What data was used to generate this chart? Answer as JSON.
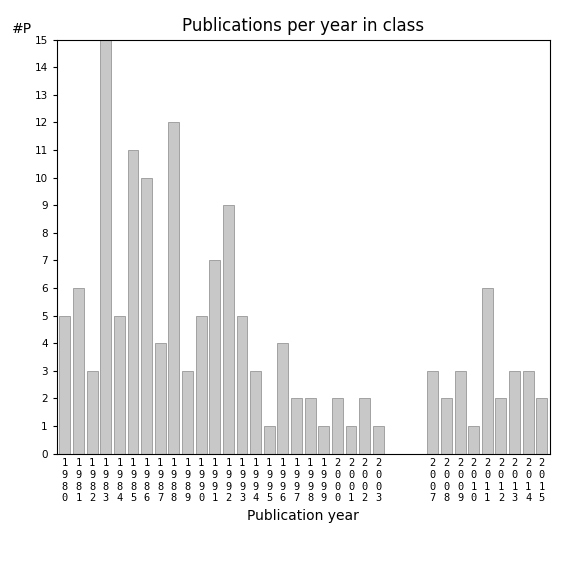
{
  "title": "Publications per year in class",
  "xlabel": "Publication year",
  "ylabel": "#P",
  "bar_color": "#c8c8c8",
  "edge_color": "#888888",
  "years": [
    1980,
    1981,
    1982,
    1983,
    1984,
    1985,
    1986,
    1987,
    1988,
    1989,
    1990,
    1991,
    1992,
    1993,
    1994,
    1995,
    1996,
    1997,
    1998,
    1999,
    2000,
    2001,
    2002,
    2003,
    2007,
    2008,
    2009,
    2010,
    2011,
    2012,
    2013,
    2014,
    2015
  ],
  "values": [
    5,
    6,
    3,
    15,
    5,
    11,
    10,
    4,
    12,
    3,
    5,
    7,
    9,
    5,
    3,
    1,
    4,
    2,
    2,
    1,
    2,
    1,
    2,
    1,
    3,
    2,
    3,
    1,
    6,
    2,
    3,
    3,
    2
  ],
  "ylim": [
    0,
    15
  ],
  "yticks": [
    0,
    1,
    2,
    3,
    4,
    5,
    6,
    7,
    8,
    9,
    10,
    11,
    12,
    13,
    14,
    15
  ],
  "title_fontsize": 12,
  "label_fontsize": 10,
  "tick_fontsize": 7.5,
  "figsize": [
    5.67,
    5.67
  ],
  "dpi": 100
}
